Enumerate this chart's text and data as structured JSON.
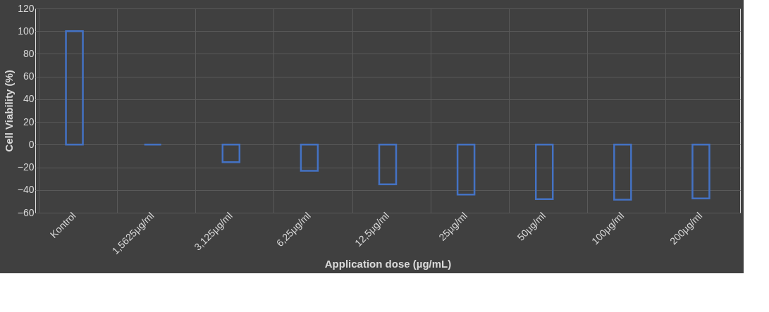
{
  "chart_data": {
    "type": "bar",
    "xlabel": "Application dose (µg/mL)",
    "ylabel": "Cell Viability (%)",
    "categories": [
      "Kontrol",
      "1,5625µg/ml",
      "3,125µg/ml",
      "6,25µg/ml",
      "12,5µg/ml",
      "25µg/ml",
      "50µg/ml",
      "100µg/ml",
      "200µg/ml"
    ],
    "values": [
      100,
      0,
      -15.5,
      -23,
      -35,
      -44,
      -48,
      -48.5,
      -47.5
    ],
    "color": "#4472c4",
    "ylim": [
      -60,
      120
    ],
    "yticks": [
      -60,
      -40,
      -20,
      0,
      20,
      40,
      60,
      80,
      100,
      120
    ],
    "grid": true
  }
}
